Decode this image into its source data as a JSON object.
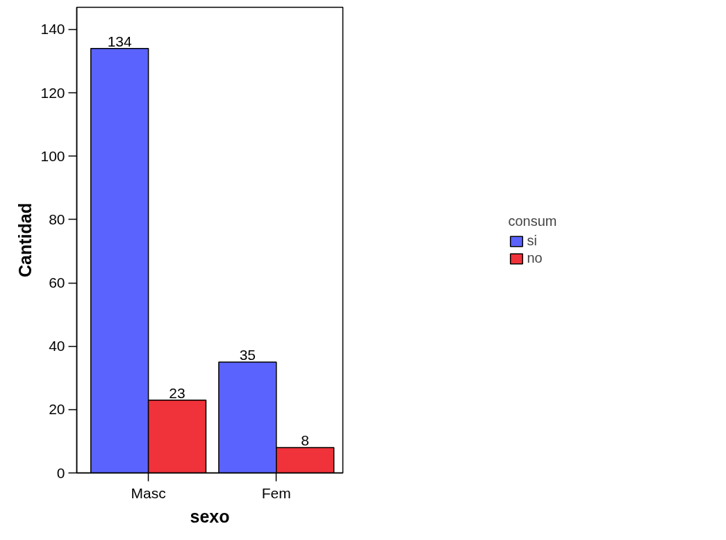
{
  "chart_data": {
    "type": "bar",
    "xlabel": "sexo",
    "ylabel": "Cantidad",
    "legend_title": "consum",
    "categories": [
      "Masc",
      "Fem"
    ],
    "series": [
      {
        "name": "si",
        "color": "#5b63fe",
        "values": [
          134,
          35
        ]
      },
      {
        "name": "no",
        "color": "#f0323a",
        "values": [
          23,
          8
        ]
      }
    ],
    "ylim": [
      0,
      147
    ],
    "yticks": [
      0,
      20,
      40,
      60,
      80,
      100,
      120,
      140
    ],
    "data_labels": true,
    "legend": "right",
    "grid": false
  }
}
